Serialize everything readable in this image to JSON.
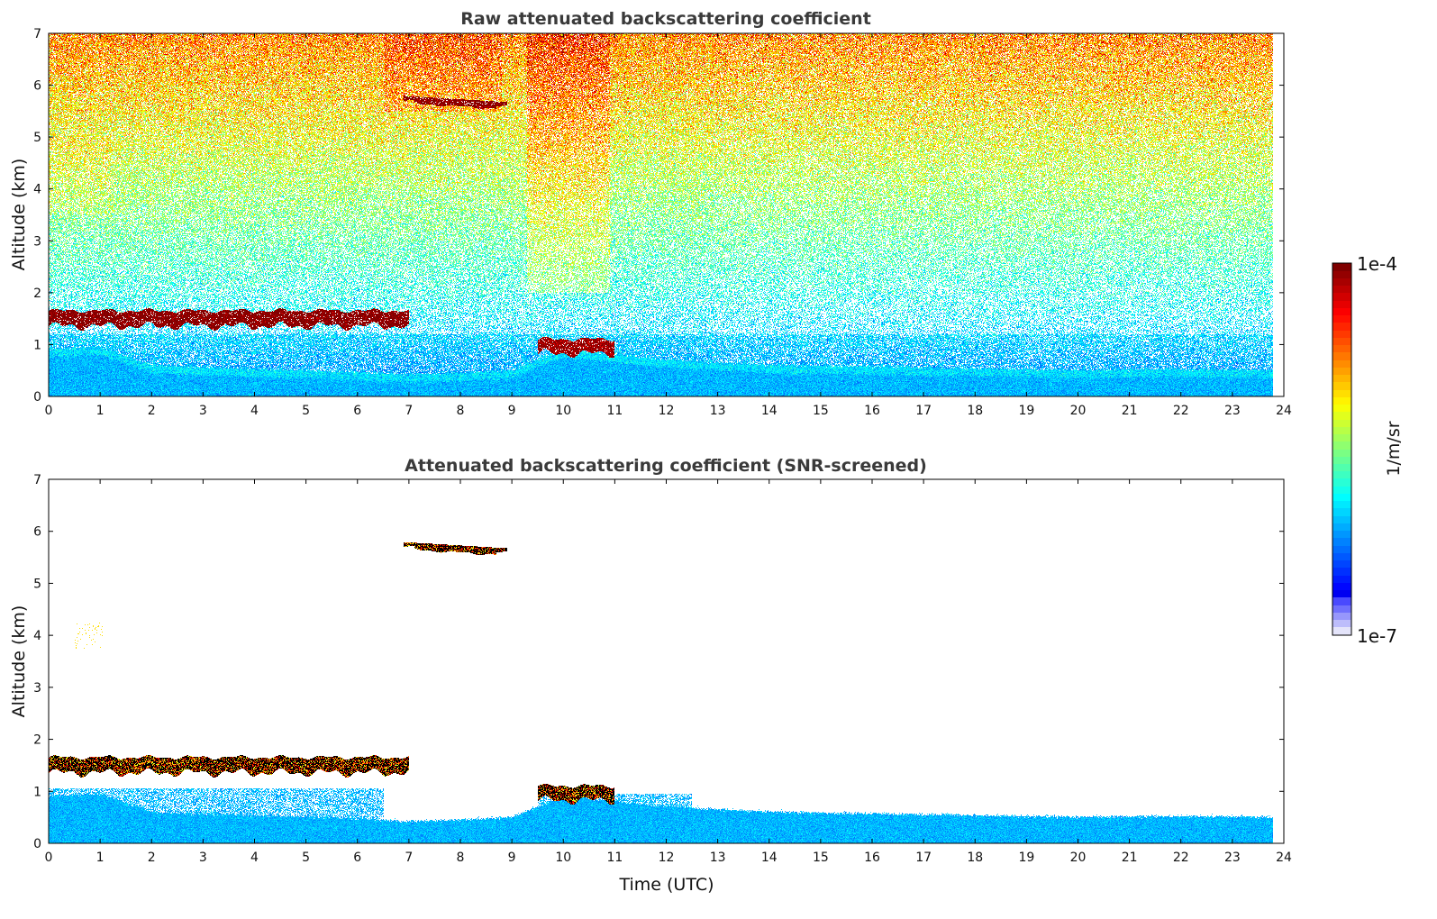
{
  "chart_data": [
    {
      "type": "heatmap",
      "title": "Raw attenuated backscattering coefficient",
      "xlabel": "",
      "ylabel": "Altitude (km)",
      "xlim": [
        0,
        24
      ],
      "ylim": [
        0,
        7
      ],
      "xticks": [
        "0",
        "1",
        "2",
        "3",
        "4",
        "5",
        "6",
        "7",
        "8",
        "9",
        "10",
        "11",
        "12",
        "13",
        "14",
        "15",
        "16",
        "17",
        "18",
        "19",
        "20",
        "21",
        "22",
        "23",
        "24"
      ],
      "yticks": [
        "0",
        "1",
        "2",
        "3",
        "4",
        "5",
        "6",
        "7"
      ],
      "data_end_time": 23.8,
      "boundary_layer_top_km": {
        "t": [
          0,
          1,
          2,
          3,
          5,
          7,
          8,
          9,
          10,
          11,
          12,
          14,
          17,
          20,
          22,
          23.8
        ],
        "z": [
          0.9,
          0.95,
          0.6,
          0.55,
          0.5,
          0.42,
          0.45,
          0.5,
          0.9,
          0.8,
          0.7,
          0.6,
          0.55,
          0.5,
          0.52,
          0.5
        ]
      },
      "cloud_layers": [
        {
          "t_start": 0,
          "t_end": 7,
          "base_km": 1.35,
          "top_km": 1.65,
          "log10_value": -4.0
        },
        {
          "t_start": 6.9,
          "t_end": 8.9,
          "base_km": 5.58,
          "top_km": 5.8,
          "log10_value": -4.0
        },
        {
          "t_start": 9.5,
          "t_end": 11,
          "base_km": 0.82,
          "top_km": 1.1,
          "log10_value": -4.1
        }
      ]
    },
    {
      "type": "heatmap",
      "title": "Attenuated backscattering coefficient (SNR-screened)",
      "xlabel": "Time (UTC)",
      "ylabel": "Altitude (km)",
      "xlim": [
        0,
        24
      ],
      "ylim": [
        0,
        7
      ],
      "xticks": [
        "0",
        "1",
        "2",
        "3",
        "4",
        "5",
        "6",
        "7",
        "8",
        "9",
        "10",
        "11",
        "12",
        "13",
        "14",
        "15",
        "16",
        "17",
        "18",
        "19",
        "20",
        "21",
        "22",
        "23",
        "24"
      ],
      "yticks": [
        "0",
        "1",
        "2",
        "3",
        "4",
        "5",
        "6",
        "7"
      ]
    }
  ],
  "colorbar": {
    "label": "1/m/sr",
    "max_label": "1e-4",
    "min_label": "1e-7",
    "log10_range": [
      -7,
      -4
    ],
    "colormap": "jet",
    "levels": 50
  }
}
